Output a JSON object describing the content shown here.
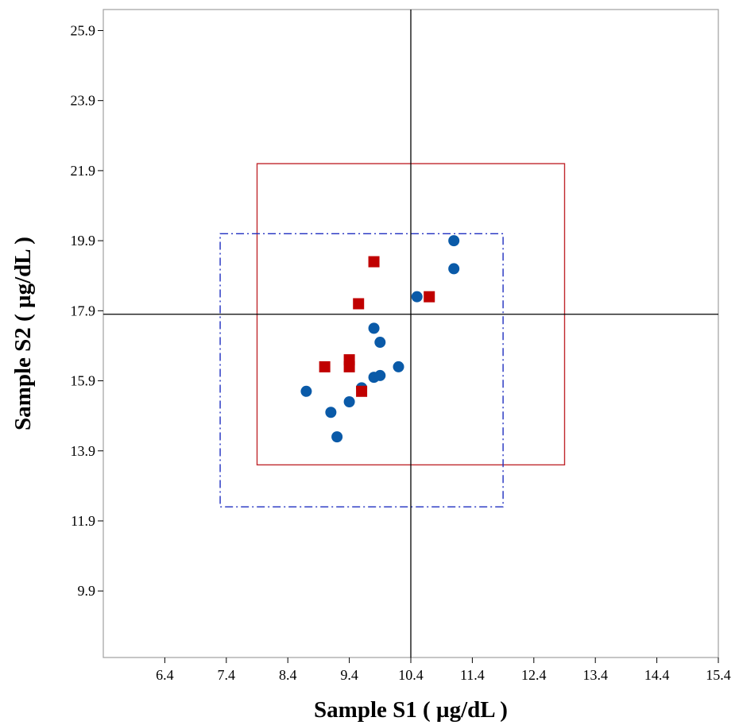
{
  "chart_data": {
    "type": "scatter",
    "title": "",
    "xlabel": "Sample S1 ( µg/dL )",
    "ylabel": "Sample S2 ( µg/dL )",
    "xlim": [
      5.4,
      15.4
    ],
    "ylim": [
      8.0,
      26.5
    ],
    "xticks": [
      "6.4",
      "7.4",
      "8.4",
      "9.4",
      "10.4",
      "11.4",
      "12.4",
      "13.4",
      "14.4",
      "15.4"
    ],
    "yticks": [
      "9.9",
      "11.9",
      "13.9",
      "15.9",
      "17.9",
      "19.9",
      "21.9",
      "23.9",
      "25.9"
    ],
    "grid": false,
    "reference_lines": {
      "x": 10.4,
      "y": 17.8,
      "color": "#000000"
    },
    "regions": [
      {
        "kind": "solid-rectangle",
        "color": "#c0282d",
        "x": [
          7.9,
          12.9
        ],
        "y": [
          13.5,
          22.1
        ]
      },
      {
        "kind": "dash-dot-rectangle",
        "color": "#1f2fc0",
        "x": [
          7.3,
          11.9
        ],
        "y": [
          12.3,
          20.1
        ]
      }
    ],
    "series": [
      {
        "marker": "circle",
        "color": "#0a5aa8",
        "points": [
          [
            8.7,
            15.6
          ],
          [
            9.1,
            15.0
          ],
          [
            9.2,
            14.3
          ],
          [
            9.4,
            15.3
          ],
          [
            9.6,
            15.7
          ],
          [
            9.8,
            16.0
          ],
          [
            9.9,
            16.05
          ],
          [
            9.8,
            17.4
          ],
          [
            9.9,
            17.0
          ],
          [
            10.2,
            16.3
          ],
          [
            10.5,
            18.3
          ],
          [
            11.1,
            19.9
          ],
          [
            11.1,
            19.1
          ]
        ]
      },
      {
        "marker": "square",
        "color": "#c00000",
        "points": [
          [
            9.0,
            16.3
          ],
          [
            9.4,
            16.3
          ],
          [
            9.4,
            16.5
          ],
          [
            9.6,
            15.6
          ],
          [
            9.55,
            18.1
          ],
          [
            9.8,
            19.3
          ],
          [
            10.7,
            18.3
          ]
        ]
      }
    ]
  }
}
